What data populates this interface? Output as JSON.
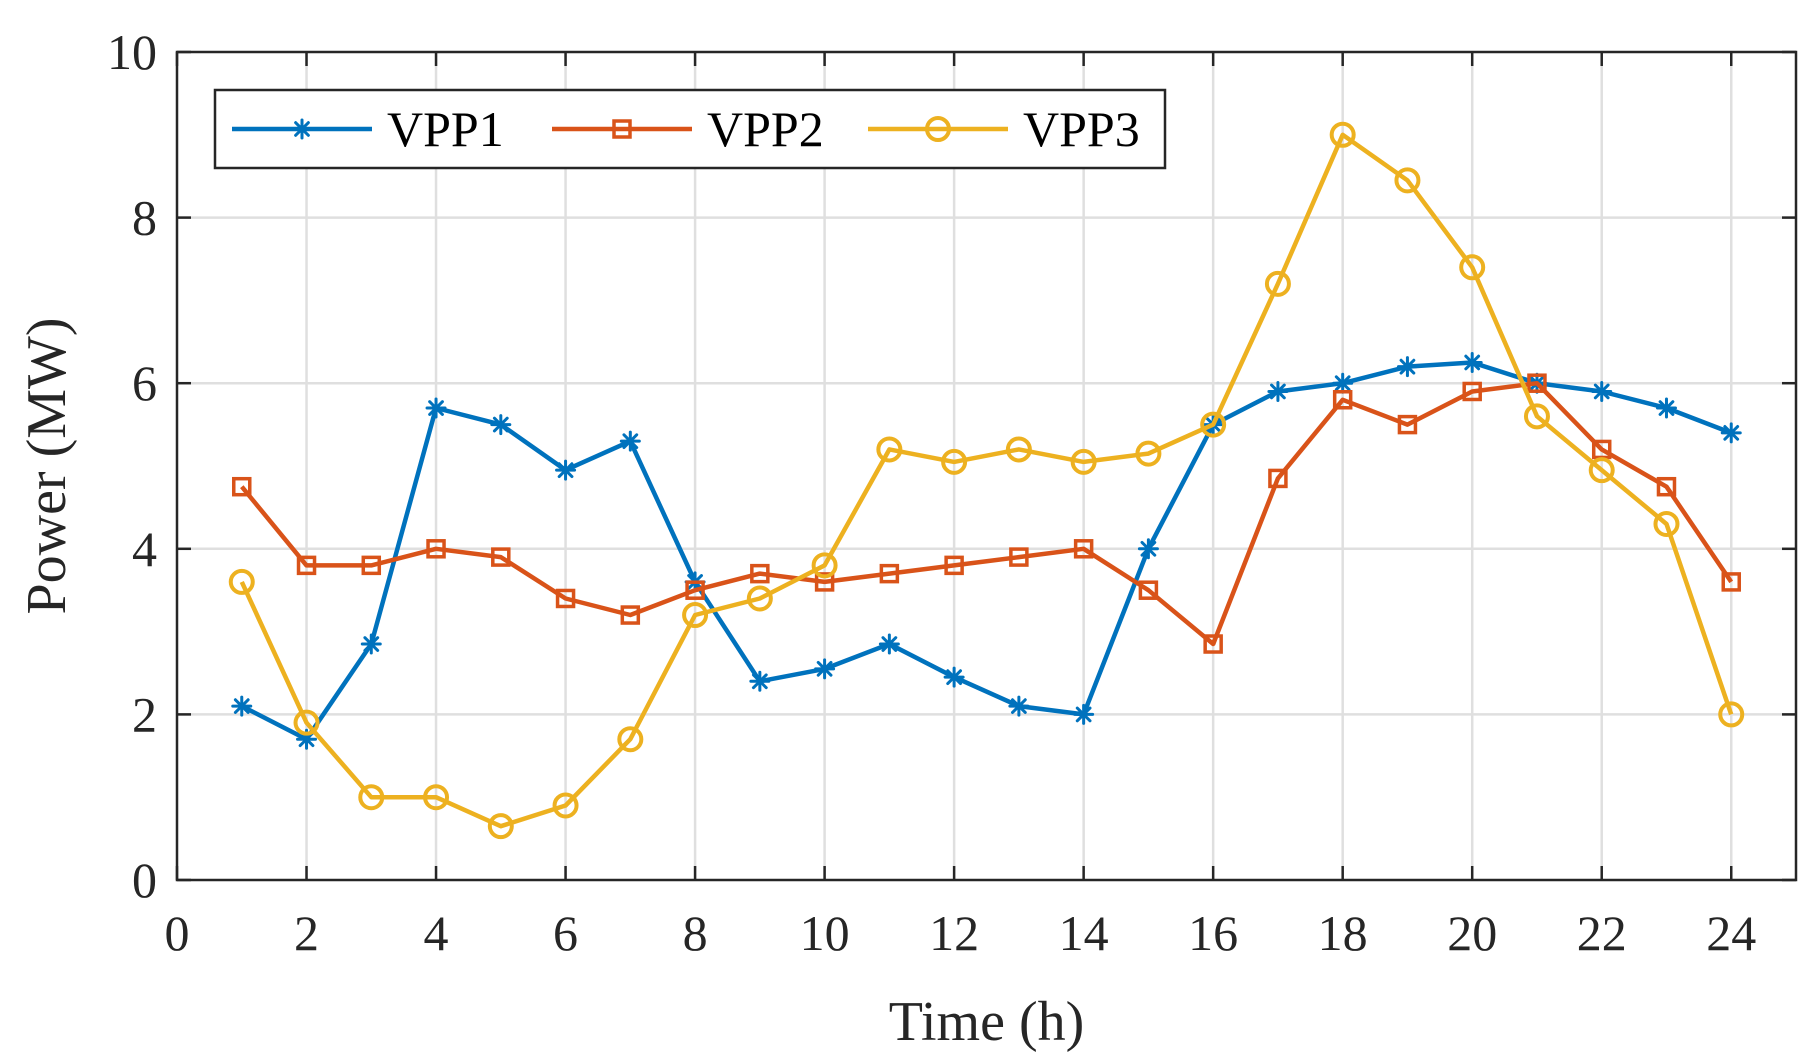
{
  "chart_data": {
    "type": "line",
    "title": "",
    "xlabel": "Time (h)",
    "ylabel": "Power (MW)",
    "xlim": [
      0,
      25
    ],
    "ylim": [
      0,
      10
    ],
    "xticks": [
      0,
      2,
      4,
      6,
      8,
      10,
      12,
      14,
      16,
      18,
      20,
      22,
      24
    ],
    "yticks": [
      0,
      2,
      4,
      6,
      8,
      10
    ],
    "grid": true,
    "legend_position": "top-left",
    "x": [
      1,
      2,
      3,
      4,
      5,
      6,
      7,
      8,
      9,
      10,
      11,
      12,
      13,
      14,
      15,
      16,
      17,
      18,
      19,
      20,
      21,
      22,
      23,
      24
    ],
    "series": [
      {
        "name": "VPP1",
        "color": "#0072BD",
        "marker": "asterisk",
        "values": [
          2.1,
          1.7,
          2.85,
          5.7,
          5.5,
          4.95,
          5.3,
          3.6,
          2.4,
          2.55,
          2.85,
          2.45,
          2.1,
          2.0,
          4.0,
          5.5,
          5.9,
          6.0,
          6.2,
          6.25,
          6.0,
          5.9,
          5.7,
          5.4
        ]
      },
      {
        "name": "VPP2",
        "color": "#D95319",
        "marker": "square",
        "values": [
          4.75,
          3.8,
          3.8,
          4.0,
          3.9,
          3.4,
          3.2,
          3.5,
          3.7,
          3.6,
          3.7,
          3.8,
          3.9,
          4.0,
          3.5,
          2.85,
          4.85,
          5.8,
          5.5,
          5.9,
          6.0,
          5.2,
          4.75,
          3.6
        ]
      },
      {
        "name": "VPP3",
        "color": "#EDB120",
        "marker": "circle",
        "values": [
          3.6,
          1.9,
          1.0,
          1.0,
          0.65,
          0.9,
          1.7,
          3.2,
          3.4,
          3.8,
          5.2,
          5.05,
          5.2,
          5.05,
          5.15,
          5.5,
          7.2,
          9.0,
          8.45,
          7.4,
          5.6,
          4.95,
          4.3,
          2.0
        ]
      }
    ]
  }
}
